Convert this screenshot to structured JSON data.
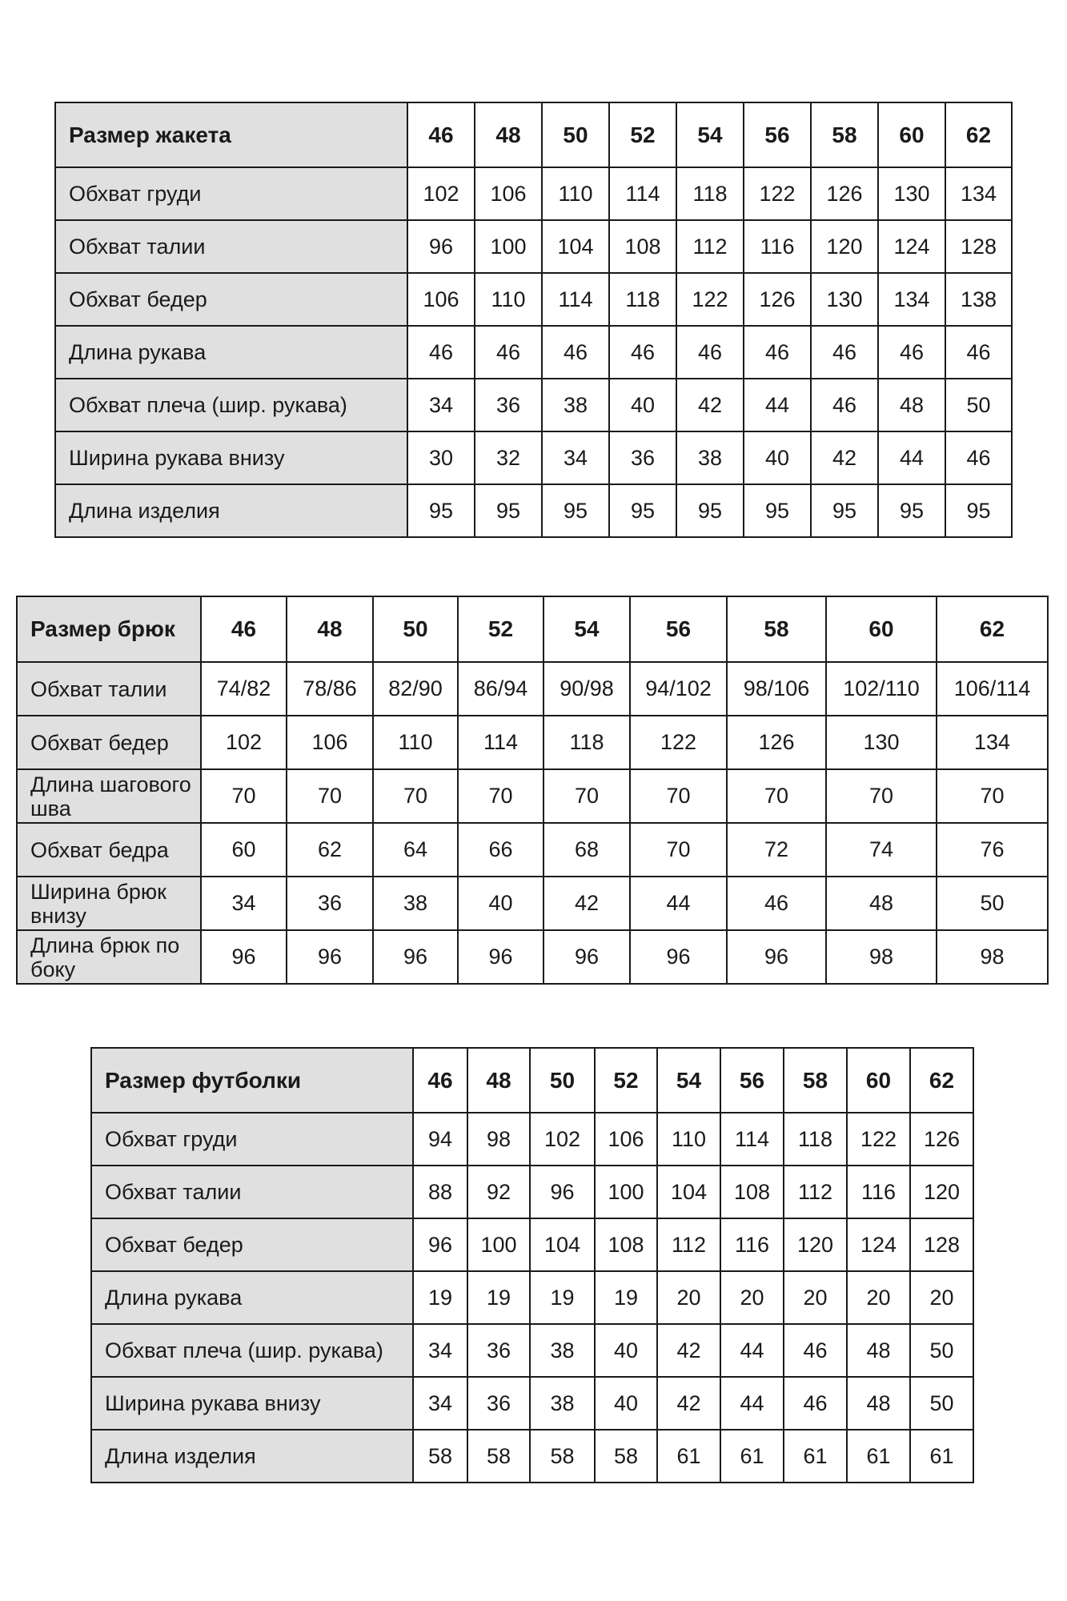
{
  "tables": [
    {
      "id": "jacket",
      "header_label": "Размер жакета",
      "sizes": [
        "46",
        "48",
        "50",
        "52",
        "54",
        "56",
        "58",
        "60",
        "62"
      ],
      "rows": [
        {
          "label": "Обхват груди",
          "values": [
            "102",
            "106",
            "110",
            "114",
            "118",
            "122",
            "126",
            "130",
            "134"
          ]
        },
        {
          "label": "Обхват талии",
          "values": [
            "96",
            "100",
            "104",
            "108",
            "112",
            "116",
            "120",
            "124",
            "128"
          ]
        },
        {
          "label": "Обхват бедер",
          "values": [
            "106",
            "110",
            "114",
            "118",
            "122",
            "126",
            "130",
            "134",
            "138"
          ]
        },
        {
          "label": "Длина рукава",
          "values": [
            "46",
            "46",
            "46",
            "46",
            "46",
            "46",
            "46",
            "46",
            "46"
          ]
        },
        {
          "label": "Обхват плеча (шир. рукава)",
          "values": [
            "34",
            "36",
            "38",
            "40",
            "42",
            "44",
            "46",
            "48",
            "50"
          ]
        },
        {
          "label": "Ширина рукава внизу",
          "values": [
            "30",
            "32",
            "34",
            "36",
            "38",
            "40",
            "42",
            "44",
            "46"
          ]
        },
        {
          "label": "Длина изделия",
          "values": [
            "95",
            "95",
            "95",
            "95",
            "95",
            "95",
            "95",
            "95",
            "95"
          ]
        }
      ]
    },
    {
      "id": "trousers",
      "header_label": "Размер брюк",
      "sizes": [
        "46",
        "48",
        "50",
        "52",
        "54",
        "56",
        "58",
        "60",
        "62"
      ],
      "rows": [
        {
          "label": "Обхват талии",
          "values": [
            "74/82",
            "78/86",
            "82/90",
            "86/94",
            "90/98",
            "94/102",
            "98/106",
            "102/110",
            "106/114"
          ]
        },
        {
          "label": "Обхват бедер",
          "values": [
            "102",
            "106",
            "110",
            "114",
            "118",
            "122",
            "126",
            "130",
            "134"
          ]
        },
        {
          "label": "Длина шагового шва",
          "values": [
            "70",
            "70",
            "70",
            "70",
            "70",
            "70",
            "70",
            "70",
            "70"
          ]
        },
        {
          "label": "Обхват бедра",
          "values": [
            "60",
            "62",
            "64",
            "66",
            "68",
            "70",
            "72",
            "74",
            "76"
          ]
        },
        {
          "label": "Ширина брюк внизу",
          "values": [
            "34",
            "36",
            "38",
            "40",
            "42",
            "44",
            "46",
            "48",
            "50"
          ]
        },
        {
          "label": "Длина брюк по боку",
          "values": [
            "96",
            "96",
            "96",
            "96",
            "96",
            "96",
            "96",
            "98",
            "98"
          ]
        }
      ]
    },
    {
      "id": "tshirt",
      "header_label": "Размер футболки",
      "sizes": [
        "46",
        "48",
        "50",
        "52",
        "54",
        "56",
        "58",
        "60",
        "62"
      ],
      "rows": [
        {
          "label": "Обхват груди",
          "values": [
            "94",
            "98",
            "102",
            "106",
            "110",
            "114",
            "118",
            "122",
            "126"
          ]
        },
        {
          "label": "Обхват талии",
          "values": [
            "88",
            "92",
            "96",
            "100",
            "104",
            "108",
            "112",
            "116",
            "120"
          ]
        },
        {
          "label": "Обхват бедер",
          "values": [
            "96",
            "100",
            "104",
            "108",
            "112",
            "116",
            "120",
            "124",
            "128"
          ]
        },
        {
          "label": "Длина рукава",
          "values": [
            "19",
            "19",
            "19",
            "19",
            "20",
            "20",
            "20",
            "20",
            "20"
          ]
        },
        {
          "label": "Обхват плеча (шир. рукава)",
          "values": [
            "34",
            "36",
            "38",
            "40",
            "42",
            "44",
            "46",
            "48",
            "50"
          ]
        },
        {
          "label": "Ширина рукава внизу",
          "values": [
            "34",
            "36",
            "38",
            "40",
            "42",
            "44",
            "46",
            "48",
            "50"
          ]
        },
        {
          "label": "Длина изделия",
          "values": [
            "58",
            "58",
            "58",
            "58",
            "61",
            "61",
            "61",
            "61",
            "61"
          ]
        }
      ]
    }
  ]
}
